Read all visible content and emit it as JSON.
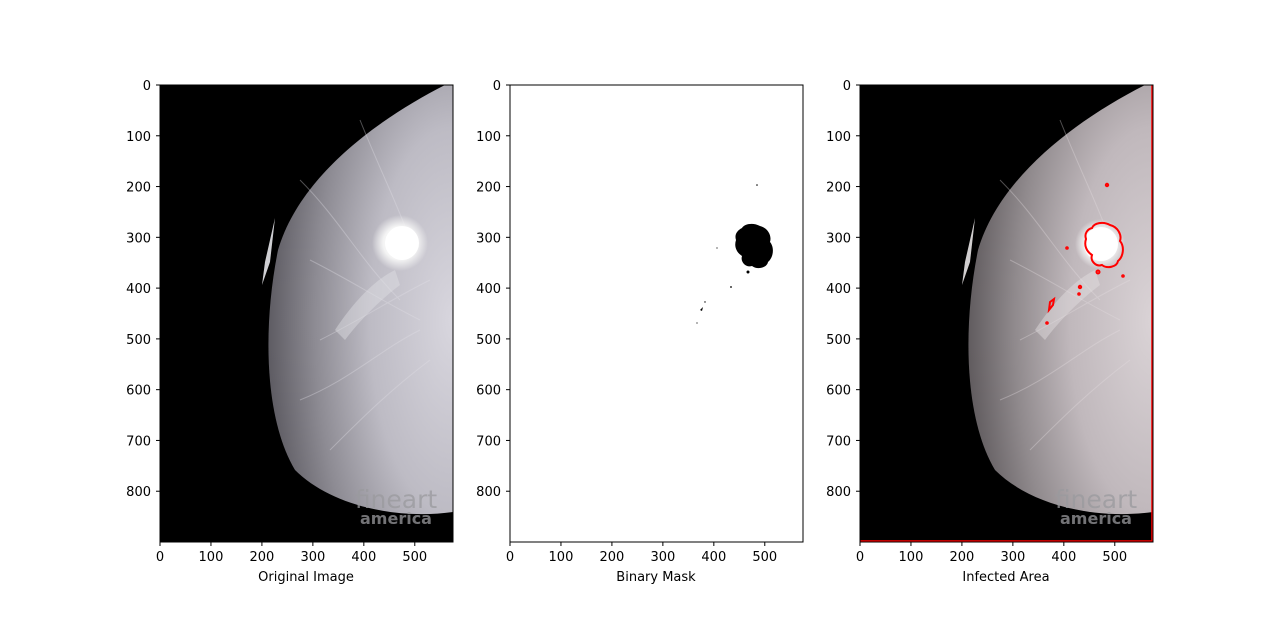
{
  "chart_data": [
    {
      "type": "image",
      "xlabel": "Original Image",
      "xlim": [
        0,
        575
      ],
      "ylim": [
        0,
        900
      ],
      "y_inverted": true,
      "xticks": [
        "0",
        "100",
        "200",
        "300",
        "400",
        "500"
      ],
      "yticks": [
        "0",
        "100",
        "200",
        "300",
        "400",
        "500",
        "600",
        "700",
        "800"
      ],
      "watermark": [
        "fineart",
        "america"
      ]
    },
    {
      "type": "image",
      "xlabel": "Binary Mask",
      "xlim": [
        0,
        575
      ],
      "ylim": [
        0,
        900
      ],
      "y_inverted": true,
      "xticks": [
        "0",
        "100",
        "200",
        "300",
        "400",
        "500"
      ],
      "yticks": [
        "0",
        "100",
        "200",
        "300",
        "400",
        "500",
        "600",
        "700",
        "800"
      ]
    },
    {
      "type": "image",
      "xlabel": "Infected Area",
      "xlim": [
        0,
        575
      ],
      "ylim": [
        0,
        900
      ],
      "y_inverted": true,
      "xticks": [
        "0",
        "100",
        "200",
        "300",
        "400",
        "500"
      ],
      "yticks": [
        "0",
        "100",
        "200",
        "300",
        "400",
        "500",
        "600",
        "700",
        "800"
      ],
      "watermark": [
        "fineart",
        "america"
      ],
      "contour_color": "#ff0000"
    }
  ],
  "colors": {
    "tissue": "#c9c7cf",
    "background": "#000000",
    "mask": "#000000",
    "contour": "#ff0000"
  }
}
